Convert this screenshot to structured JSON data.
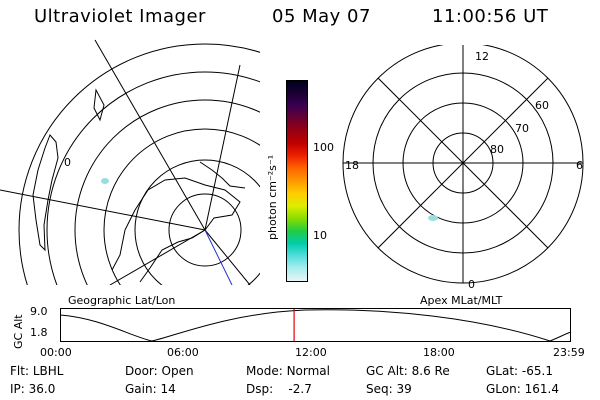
{
  "header": {
    "instrument": "Ultraviolet Imager",
    "date": "05 May 07",
    "time": "11:00:56 UT"
  },
  "colorbar": {
    "unit_label": "photon cm⁻²s⁻¹",
    "ticks": [
      "100",
      "10"
    ],
    "colors": [
      "#000020",
      "#1a0033",
      "#3a0050",
      "#6a0030",
      "#990010",
      "#c00000",
      "#ee2200",
      "#ff6600",
      "#ff9900",
      "#ffcc00",
      "#ddee00",
      "#88dd00",
      "#22cc44",
      "#00ccaa",
      "#55dddd",
      "#aaeeee",
      "#e6f5f5"
    ]
  },
  "geo_panel": {
    "label": "Geographic Lat/Lon",
    "mark_label": "0"
  },
  "mag_panel": {
    "label": "Apex MLat/MLT",
    "mlt_labels": {
      "top": "12",
      "bottom": "0",
      "left": "18",
      "right": "6"
    },
    "lat_labels": [
      "60",
      "70",
      "80"
    ]
  },
  "altitude_plot": {
    "ylabel": "GC Alt",
    "yticks": [
      "9.0",
      "1.8"
    ],
    "xticks": [
      "00:00",
      "06:00",
      "12:00",
      "18:00",
      "23:59"
    ],
    "current_time_fraction": 0.459,
    "marker_color": "#dd0000"
  },
  "status": {
    "flt_label": "Flt:",
    "flt_value": "LBHL",
    "door_label": "Door:",
    "door_value": "Open",
    "mode_label": "Mode:",
    "mode_value": "Normal",
    "gcalt_label": "GC Alt:",
    "gcalt_value": "8.6 Re",
    "glat_label": "GLat:",
    "glat_value": "-65.1",
    "ip_label": "IP:",
    "ip_value": "36.0",
    "gain_label": "Gain:",
    "gain_value": "14",
    "dsp_label": "Dsp:",
    "dsp_value": "-2.7",
    "seq_label": "Seq:",
    "seq_value": "39",
    "glon_label": "GLon:",
    "glon_value": "161.4"
  }
}
